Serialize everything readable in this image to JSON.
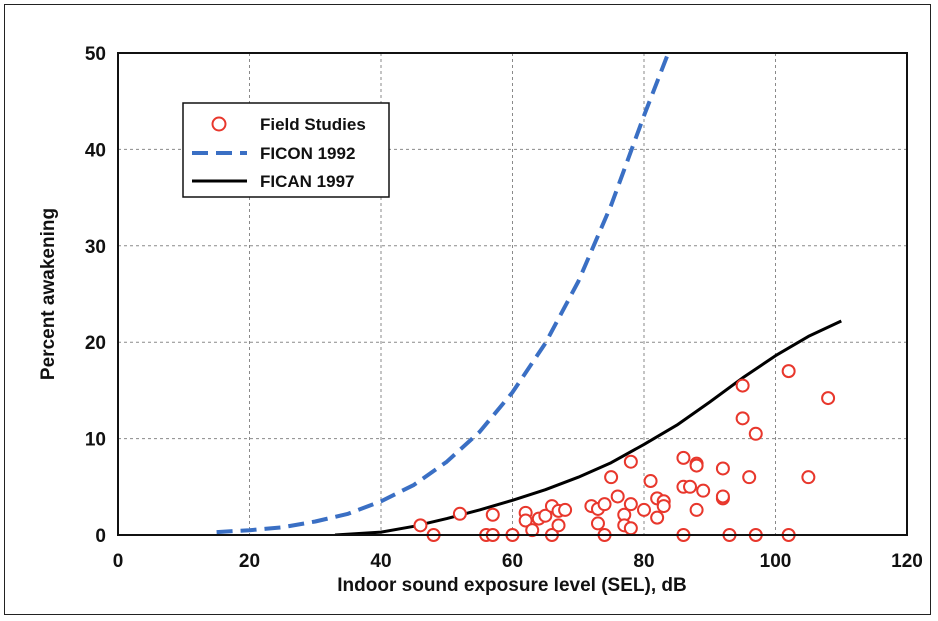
{
  "chart_data": {
    "type": "scatter",
    "title": "",
    "xlabel": "Indoor sound exposure level (SEL), dB",
    "ylabel": "Percent awakening",
    "xlim": [
      0,
      120
    ],
    "ylim": [
      0,
      50
    ],
    "xticks": [
      "0",
      "20",
      "40",
      "60",
      "80",
      "100",
      "120"
    ],
    "yticks": [
      "0",
      "10",
      "20",
      "30",
      "40",
      "50"
    ],
    "grid": true,
    "legend_position": "top-left",
    "series": [
      {
        "name": "Field Studies",
        "kind": "scatter",
        "color": "#e8372c",
        "points": [
          [
            46,
            1.0
          ],
          [
            48,
            0
          ],
          [
            52,
            2.2
          ],
          [
            56,
            0
          ],
          [
            57,
            2.1
          ],
          [
            57,
            0
          ],
          [
            60,
            0
          ],
          [
            62,
            2.3
          ],
          [
            62,
            1.5
          ],
          [
            63,
            0.5
          ],
          [
            64,
            1.7
          ],
          [
            65,
            2.0
          ],
          [
            66,
            0
          ],
          [
            66,
            3.0
          ],
          [
            67,
            2.5
          ],
          [
            67,
            1.0
          ],
          [
            68,
            2.6
          ],
          [
            72,
            3.0
          ],
          [
            73,
            2.7
          ],
          [
            73,
            1.2
          ],
          [
            74,
            0
          ],
          [
            74,
            3.2
          ],
          [
            75,
            6.0
          ],
          [
            76,
            4.0
          ],
          [
            77,
            2.1
          ],
          [
            77,
            1.0
          ],
          [
            78,
            7.6
          ],
          [
            78,
            3.2
          ],
          [
            78,
            0.7
          ],
          [
            80,
            2.6
          ],
          [
            81,
            5.6
          ],
          [
            82,
            3.8
          ],
          [
            82,
            1.8
          ],
          [
            83,
            3.5
          ],
          [
            83,
            3.0
          ],
          [
            86,
            0
          ],
          [
            86,
            8.0
          ],
          [
            86,
            5.0
          ],
          [
            87,
            5.0
          ],
          [
            88,
            7.4
          ],
          [
            88,
            7.2
          ],
          [
            88,
            2.6
          ],
          [
            89,
            4.6
          ],
          [
            92,
            3.8
          ],
          [
            92,
            6.9
          ],
          [
            92,
            4.0
          ],
          [
            93,
            0
          ],
          [
            95,
            15.5
          ],
          [
            95,
            12.1
          ],
          [
            96,
            6.0
          ],
          [
            97,
            10.5
          ],
          [
            97,
            0
          ],
          [
            102,
            17.0
          ],
          [
            102,
            0
          ],
          [
            105,
            6.0
          ],
          [
            108,
            14.2
          ]
        ]
      },
      {
        "name": "FICON 1992",
        "kind": "line",
        "style": "dashed",
        "color": "#3a6fc4",
        "points": [
          [
            15,
            0.3
          ],
          [
            20,
            0.5
          ],
          [
            25,
            0.8
          ],
          [
            30,
            1.4
          ],
          [
            35,
            2.2
          ],
          [
            40,
            3.5
          ],
          [
            45,
            5.2
          ],
          [
            50,
            7.6
          ],
          [
            55,
            10.7
          ],
          [
            60,
            14.8
          ],
          [
            65,
            19.9
          ],
          [
            70,
            26.3
          ],
          [
            75,
            34.2
          ],
          [
            80,
            43.5
          ],
          [
            85,
            52.3
          ],
          [
            86,
            54.0
          ]
        ]
      },
      {
        "name": "FICAN 1997",
        "kind": "line",
        "style": "solid",
        "color": "#000000",
        "points": [
          [
            33,
            0
          ],
          [
            40,
            0.3
          ],
          [
            45,
            0.9
          ],
          [
            50,
            1.7
          ],
          [
            55,
            2.6
          ],
          [
            60,
            3.6
          ],
          [
            65,
            4.7
          ],
          [
            70,
            6.0
          ],
          [
            75,
            7.5
          ],
          [
            80,
            9.4
          ],
          [
            85,
            11.4
          ],
          [
            90,
            13.8
          ],
          [
            95,
            16.3
          ],
          [
            100,
            18.6
          ],
          [
            105,
            20.6
          ],
          [
            110,
            22.2
          ]
        ]
      }
    ]
  }
}
